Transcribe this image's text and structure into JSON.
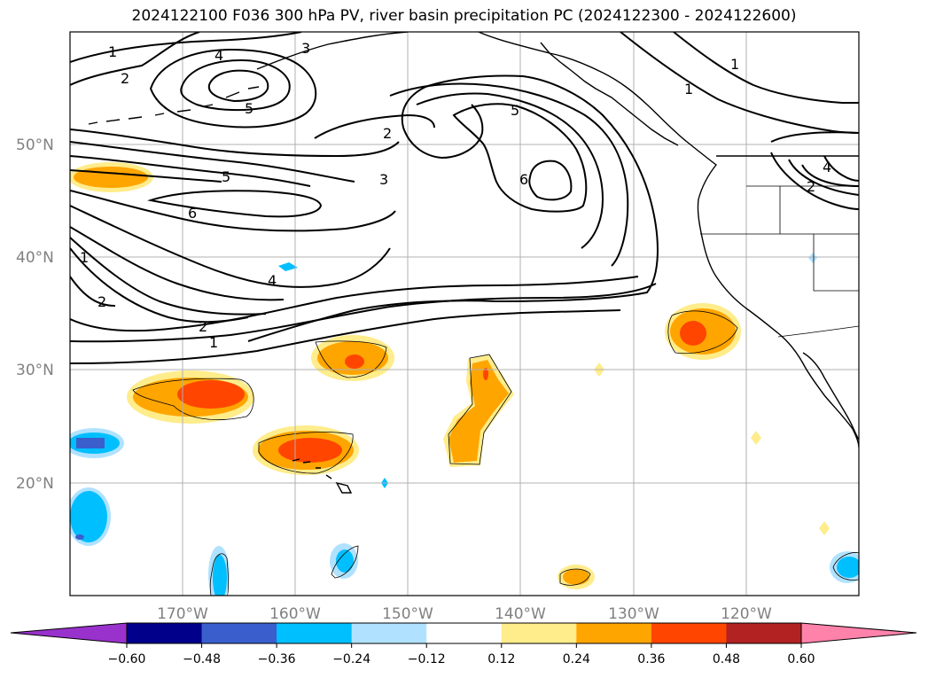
{
  "title": "2024122100 F036 300 hPa PV, river basin precipitation PC (2024122300 - 2024122600)",
  "map": {
    "lat_labels": [
      "50°N",
      "40°N",
      "30°N",
      "20°N"
    ],
    "lon_labels": [
      "170°W",
      "160°W",
      "150°W",
      "140°W",
      "130°W",
      "120°W"
    ],
    "contour_labels": [
      "1",
      "2",
      "4",
      "5",
      "3",
      "2",
      "5",
      "3",
      "6",
      "6",
      "5",
      "1",
      "1",
      "4",
      "2",
      "1",
      "2",
      "4",
      "2",
      "1"
    ],
    "gridline_color": "#b0b0b0"
  },
  "colorbar": {
    "colors": [
      "#9932cc",
      "#00008b",
      "#3a5fcd",
      "#00bfff",
      "#b0e2ff",
      "#ffffff",
      "#ffec8b",
      "#ffa500",
      "#ff4500",
      "#b22222",
      "#ff82ab"
    ],
    "tick_labels": [
      "−0.60",
      "−0.48",
      "−0.36",
      "−0.24",
      "−0.12",
      "0.12",
      "0.24",
      "0.36",
      "0.48",
      "0.60"
    ]
  }
}
